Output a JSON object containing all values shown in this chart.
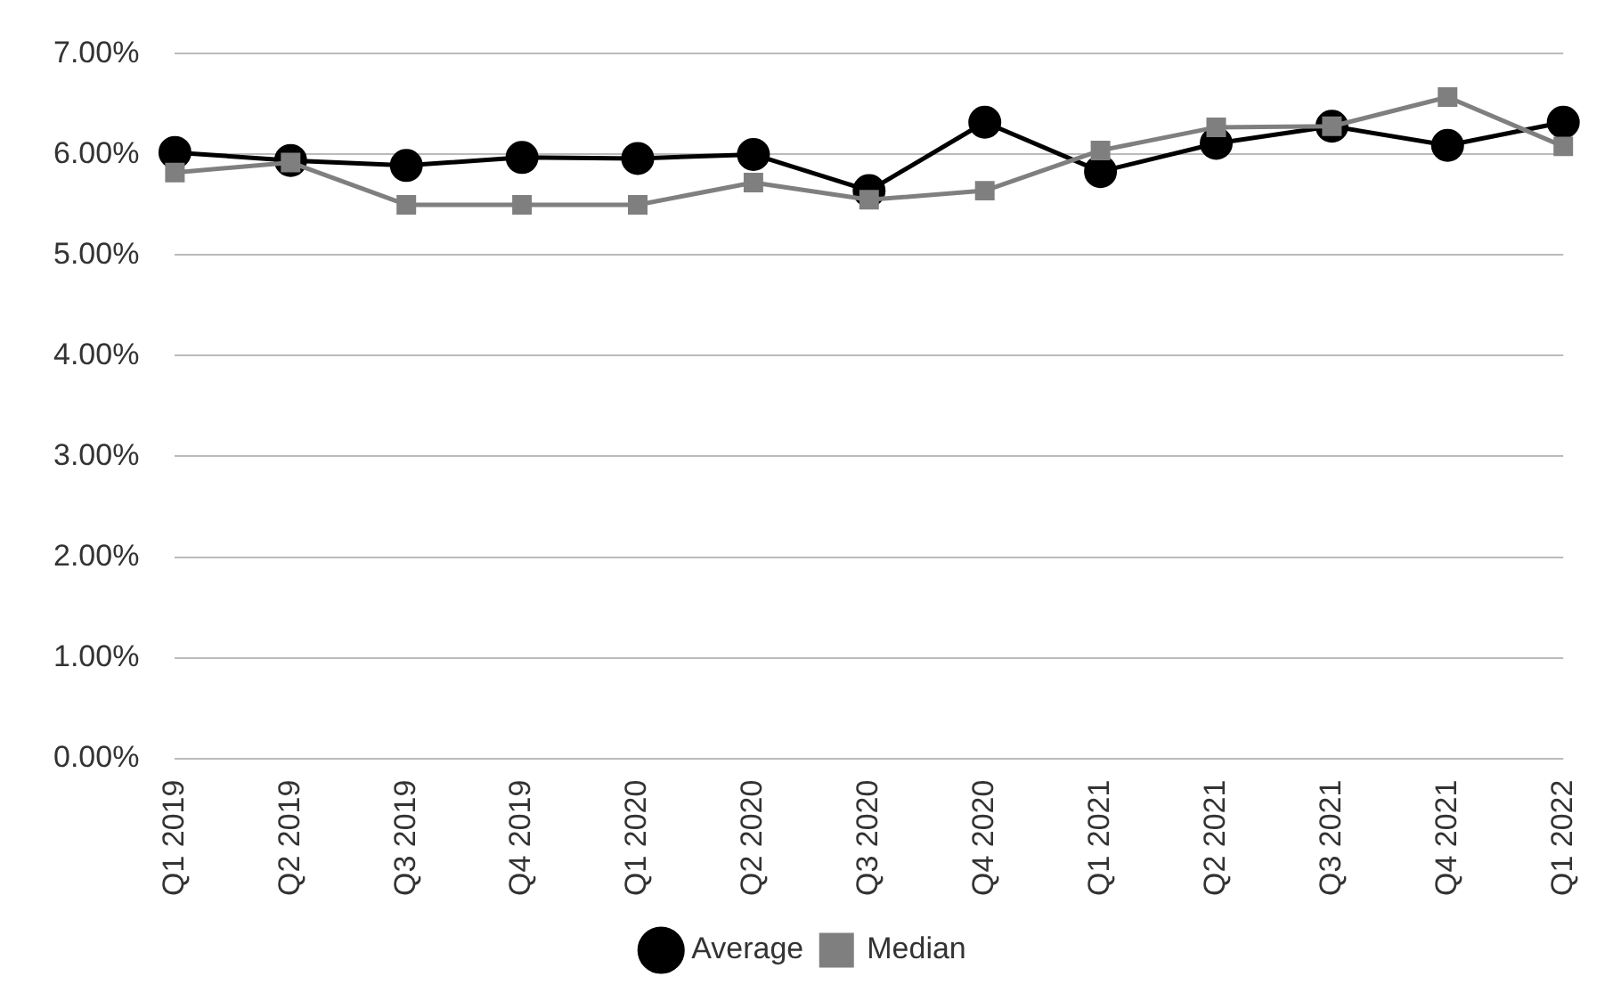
{
  "chart_data": {
    "type": "line",
    "categories": [
      "Q1 2019",
      "Q2 2019",
      "Q3 2019",
      "Q4 2019",
      "Q1 2020",
      "Q2 2020",
      "Q3 2020",
      "Q4 2020",
      "Q1 2021",
      "Q2 2021",
      "Q3 2021",
      "Q4 2021",
      "Q1 2022"
    ],
    "series": [
      {
        "name": "Average",
        "color": "#000000",
        "marker": "circle",
        "values": [
          6.02,
          5.94,
          5.89,
          5.97,
          5.96,
          6.0,
          5.64,
          6.32,
          5.83,
          6.11,
          6.28,
          6.09,
          6.32
        ]
      },
      {
        "name": "Median",
        "color": "#7f7f7f",
        "marker": "square",
        "values": [
          5.82,
          5.92,
          5.5,
          5.5,
          5.5,
          5.72,
          5.55,
          5.64,
          6.04,
          6.27,
          6.28,
          6.57,
          6.08
        ]
      }
    ],
    "ylim": [
      0,
      7
    ],
    "yticks": [
      {
        "value": 0,
        "label": "0.00%"
      },
      {
        "value": 1,
        "label": "1.00%"
      },
      {
        "value": 2,
        "label": "2.00%"
      },
      {
        "value": 3,
        "label": "3.00%"
      },
      {
        "value": 4,
        "label": "4.00%"
      },
      {
        "value": 5,
        "label": "5.00%"
      },
      {
        "value": 6,
        "label": "6.00%"
      },
      {
        "value": 7,
        "label": "7.00%"
      }
    ],
    "grid": "y",
    "legend": "bottom"
  }
}
